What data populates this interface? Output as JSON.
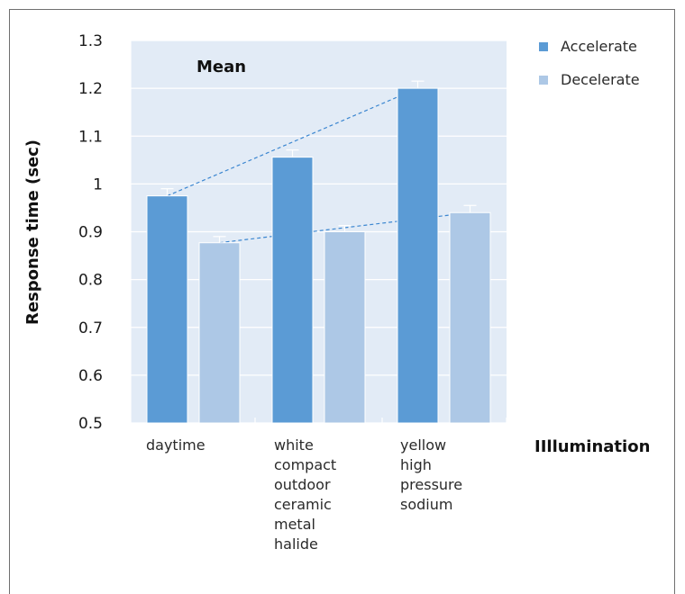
{
  "chart_data": {
    "type": "bar",
    "title": "Mean",
    "xlabel": "IIllumination",
    "ylabel": "Response time (sec)",
    "ylim": [
      0.5,
      1.3
    ],
    "yticks": [
      "0.5",
      "0.6",
      "0.7",
      "0.8",
      "0.9",
      "1",
      "1.1",
      "1.2",
      "1.3"
    ],
    "grid": true,
    "legend_position": "top-right",
    "categories": [
      [
        "daytime"
      ],
      [
        "white",
        "compact",
        "outdoor",
        "ceramic",
        "metal",
        "halide"
      ],
      [
        "yellow",
        "high",
        "pressure",
        "sodium"
      ]
    ],
    "series": [
      {
        "name": "Accelerate",
        "color": "#5b9bd5",
        "values": [
          0.975,
          1.056,
          1.2
        ],
        "errors": [
          0.015,
          0.015,
          0.015
        ]
      },
      {
        "name": "Decelerate",
        "color": "#adc8e6",
        "values": [
          0.877,
          0.9,
          0.94
        ],
        "errors": [
          0.013,
          0.013,
          0.015
        ]
      }
    ],
    "trend_lines": [
      {
        "series": "Accelerate",
        "from_category": 0,
        "to_category": 2
      },
      {
        "series": "Decelerate",
        "from_category": 0,
        "to_category": 2
      }
    ]
  }
}
